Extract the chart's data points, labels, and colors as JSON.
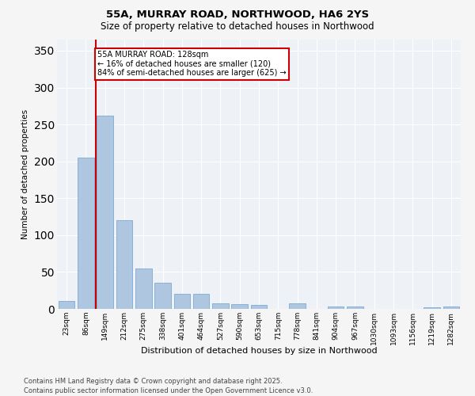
{
  "title_line1": "55A, MURRAY ROAD, NORTHWOOD, HA6 2YS",
  "title_line2": "Size of property relative to detached houses in Northwood",
  "xlabel": "Distribution of detached houses by size in Northwood",
  "ylabel": "Number of detached properties",
  "categories": [
    "23sqm",
    "86sqm",
    "149sqm",
    "212sqm",
    "275sqm",
    "338sqm",
    "401sqm",
    "464sqm",
    "527sqm",
    "590sqm",
    "653sqm",
    "715sqm",
    "778sqm",
    "841sqm",
    "904sqm",
    "967sqm",
    "1030sqm",
    "1093sqm",
    "1156sqm",
    "1219sqm",
    "1282sqm"
  ],
  "values": [
    11,
    205,
    262,
    120,
    55,
    35,
    20,
    20,
    8,
    6,
    5,
    0,
    8,
    0,
    3,
    3,
    0,
    0,
    0,
    2,
    3
  ],
  "bar_color": "#aec6df",
  "bar_edge_color": "#7bacd4",
  "background_color": "#eef2f7",
  "grid_color": "#ffffff",
  "annotation_text": "55A MURRAY ROAD: 128sqm\n← 16% of detached houses are smaller (120)\n84% of semi-detached houses are larger (625) →",
  "annotation_box_color": "#ffffff",
  "annotation_box_edge": "#cc0000",
  "vline_color": "#cc0000",
  "vline_x_bar_index": 1,
  "ylim": [
    0,
    365
  ],
  "yticks": [
    0,
    50,
    100,
    150,
    200,
    250,
    300,
    350
  ],
  "footer_line1": "Contains HM Land Registry data © Crown copyright and database right 2025.",
  "footer_line2": "Contains public sector information licensed under the Open Government Licence v3.0.",
  "fig_bg": "#f5f5f5"
}
